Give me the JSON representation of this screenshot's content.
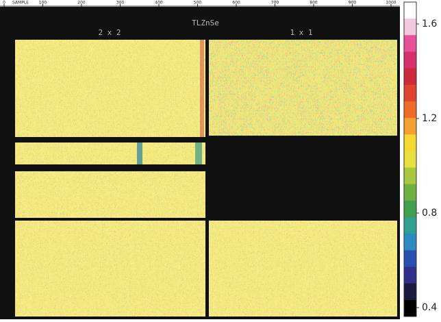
{
  "title": "TLZnSe",
  "panels": [
    {
      "label": "2 x 2"
    },
    {
      "label": "1 x 1"
    }
  ],
  "x_axis": {
    "label": "SAMPLE",
    "ticks": [
      0,
      100,
      200,
      300,
      400,
      500,
      600,
      700,
      800,
      900,
      1000
    ]
  },
  "colorbar": {
    "ticks": [
      1.6,
      1.2,
      0.8,
      0.4
    ]
  }
}
